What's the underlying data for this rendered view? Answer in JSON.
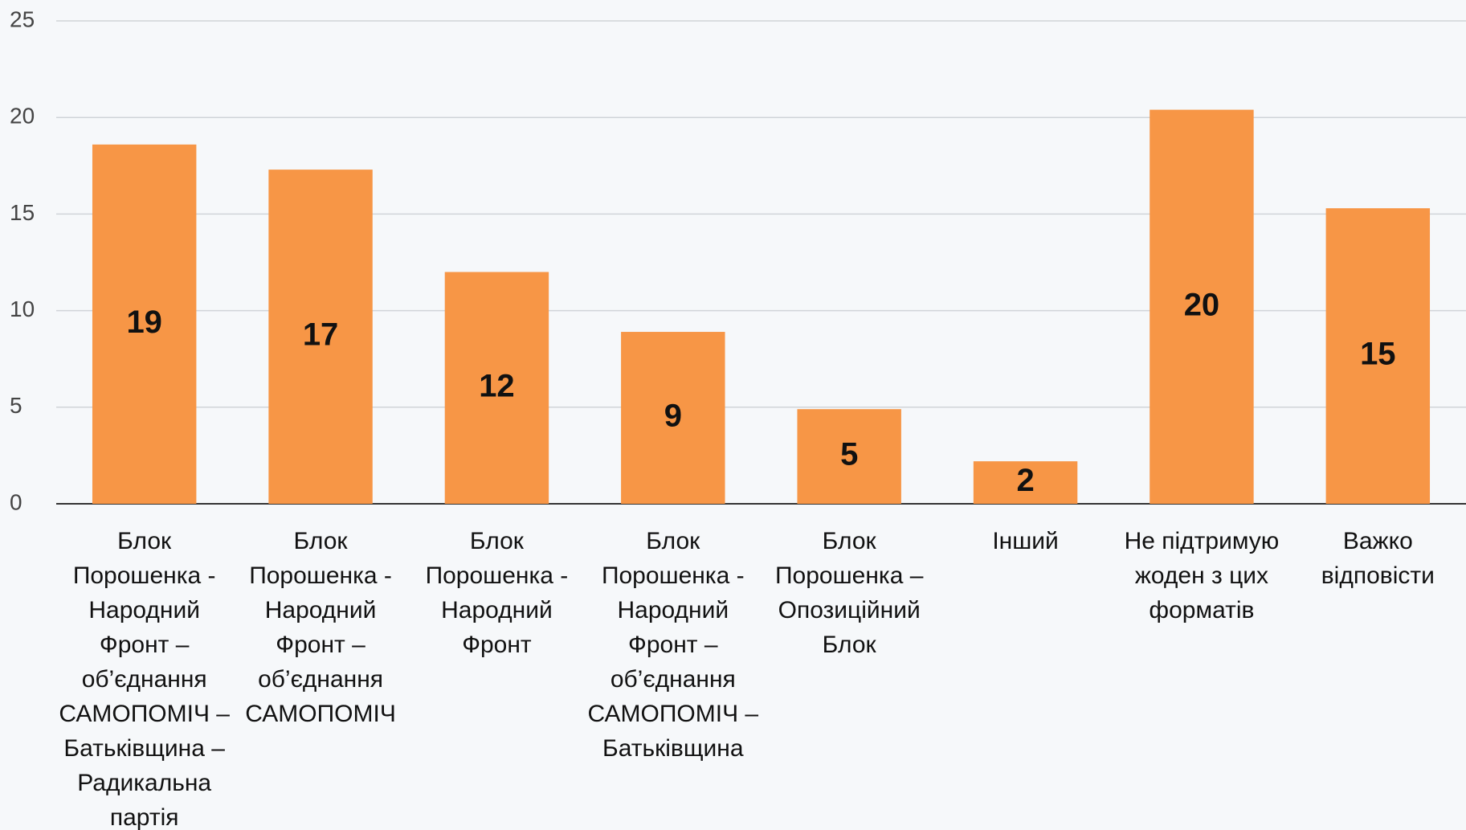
{
  "chart_data": {
    "type": "bar",
    "categories": [
      "Блок Порошенка - Народний Фронт – об’єднання САМОПОМІЧ – Батьківщина – Радикальна партія",
      "Блок Порошенка - Народний Фронт – об’єднання САМОПОМІЧ",
      "Блок Порошенка - Народний Фронт",
      "Блок Порошенка - Народний Фронт – об’єднання САМОПОМІЧ – Батьківщина",
      "Блок Порошенка – Опозиційний Блок",
      "Інший",
      "Не підтримую жоден з цих форматів",
      "Важко відповісти"
    ],
    "values": [
      18.6,
      17.3,
      12,
      8.9,
      4.9,
      2.2,
      20.4,
      15.3
    ],
    "value_labels": [
      "19",
      "17",
      "12",
      "9",
      "5",
      "2",
      "20",
      "15"
    ],
    "color": "#f79646",
    "ylim": [
      0,
      25
    ],
    "yticks": [
      0,
      5,
      10,
      15,
      20,
      25
    ],
    "grid": true
  }
}
